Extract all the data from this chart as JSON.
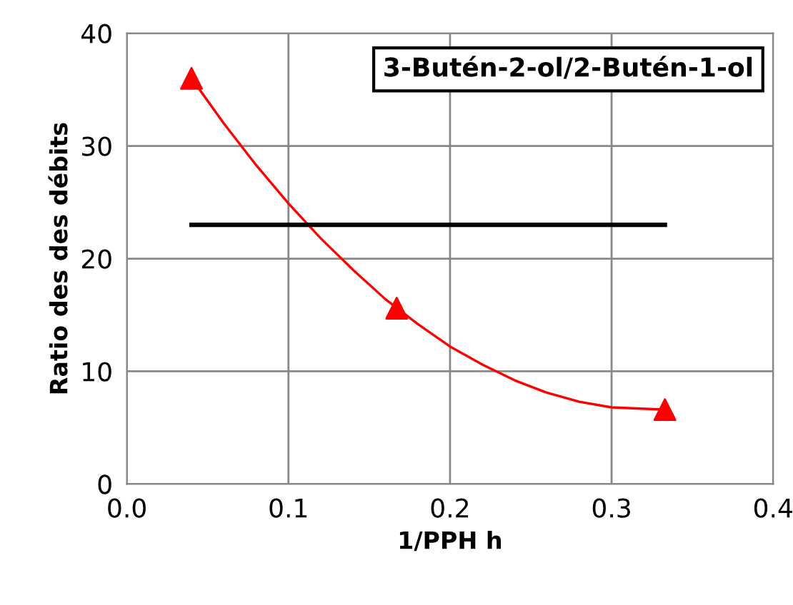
{
  "chart_data": {
    "type": "scatter",
    "title": "3-Butén-2-ol/2-Butén-1-ol",
    "xlabel": "1/PPH h",
    "ylabel": "Ratio des des débits",
    "series": [
      {
        "color": "#ff0000",
        "marker": "triangle",
        "x": [
          0.04,
          0.167,
          0.333
        ],
        "values": [
          36,
          15.6,
          6.6
        ]
      },
      {
        "type": "line",
        "color": "#ff0000",
        "marker": "none",
        "x": [
          0.04,
          0.06,
          0.08,
          0.1,
          0.12,
          0.14,
          0.16,
          0.18,
          0.2,
          0.22,
          0.24,
          0.26,
          0.28,
          0.3,
          0.333
        ],
        "values": [
          36,
          32.0,
          28.3,
          24.9,
          21.8,
          19.0,
          16.4,
          14.2,
          12.2,
          10.6,
          9.2,
          8.1,
          7.3,
          6.8,
          6.6
        ]
      },
      {
        "type": "line",
        "color": "#000000",
        "marker": "none",
        "x": [
          0.04,
          0.333
        ],
        "values": [
          23,
          23
        ]
      }
    ],
    "xlim": [
      0,
      0.4
    ],
    "xticks": [
      {
        "value": 0,
        "label": "0.0"
      },
      0.1,
      0.2,
      0.3,
      0.4
    ],
    "ylim": [
      0,
      40
    ],
    "yticks": [
      0,
      10,
      20,
      30,
      40
    ],
    "grid": true
  }
}
